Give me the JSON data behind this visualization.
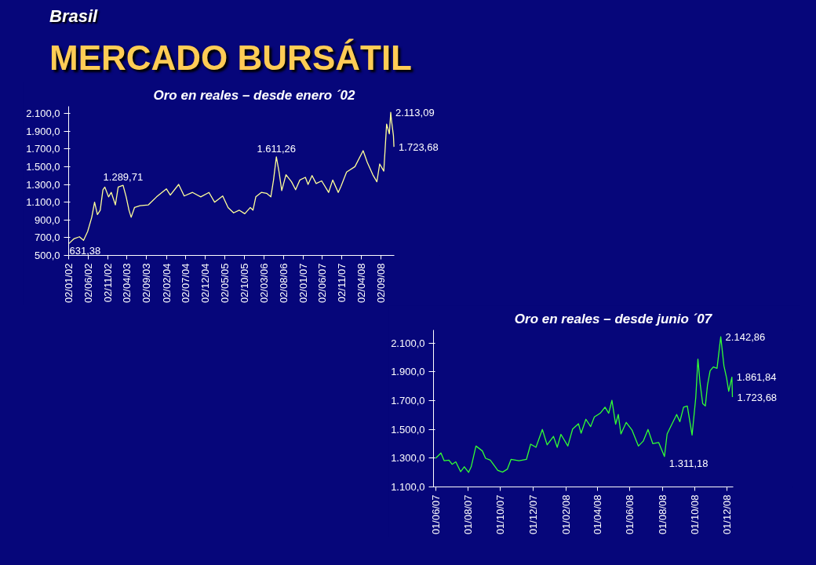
{
  "chart_data": [
    {
      "type": "line",
      "title": "Oro en reales – desde enero ´02",
      "annotations": [
        "Brasil",
        "MERCADO BURSÁTIL",
        {
          "text": "631,38",
          "x": "2002-01-02",
          "y": 631.38
        },
        {
          "text": "1.289,71",
          "x": "2003-03-02",
          "y": 1289.71
        },
        {
          "text": "1.611,26",
          "x": "2006-06-08",
          "y": 1611.26
        },
        {
          "text": "2.113,09",
          "x": "2008-11-15",
          "y": 2113.09
        },
        {
          "text": "1.723,68",
          "x": "2008-12-10",
          "y": 1723.68
        }
      ],
      "xlim": [
        "2002-01-02",
        "2008-12-12"
      ],
      "ylim": [
        500,
        2180
      ],
      "xticks": [
        {
          "value": "2002-01-02",
          "label": "02/01/02"
        },
        {
          "value": "2002-06-02",
          "label": "02/06/02"
        },
        {
          "value": "2002-11-02",
          "label": "02/11/02"
        },
        {
          "value": "2003-04-02",
          "label": "02/04/03"
        },
        {
          "value": "2003-09-02",
          "label": "02/09/03"
        },
        {
          "value": "2004-02-02",
          "label": "02/02/04"
        },
        {
          "value": "2004-07-02",
          "label": "02/07/04"
        },
        {
          "value": "2004-12-02",
          "label": "02/12/04"
        },
        {
          "value": "2005-05-02",
          "label": "02/05/05"
        },
        {
          "value": "2005-10-02",
          "label": "02/10/05"
        },
        {
          "value": "2006-03-02",
          "label": "02/03/06"
        },
        {
          "value": "2006-08-02",
          "label": "02/08/06"
        },
        {
          "value": "2007-01-02",
          "label": "02/01/07"
        },
        {
          "value": "2007-06-02",
          "label": "02/06/07"
        },
        {
          "value": "2007-11-02",
          "label": "02/11/07"
        },
        {
          "value": "2008-04-02",
          "label": "02/04/08"
        },
        {
          "value": "2008-09-02",
          "label": "02/09/08"
        }
      ],
      "yticks": [
        {
          "value": 500,
          "label": "500,0"
        },
        {
          "value": 700,
          "label": "700,0"
        },
        {
          "value": 900,
          "label": "900,0"
        },
        {
          "value": 1100,
          "label": "1.100,0"
        },
        {
          "value": 1300,
          "label": "1.300,0"
        },
        {
          "value": 1500,
          "label": "1.500,0"
        },
        {
          "value": 1700,
          "label": "1.700,0"
        },
        {
          "value": 1900,
          "label": "1.900,0"
        },
        {
          "value": 2100,
          "label": "2.100,0"
        }
      ],
      "series": [
        {
          "color": "#ffff99",
          "x": [
            "2002-01-02",
            "2002-02-14",
            "2002-03-27",
            "2002-04-28",
            "2002-05-30",
            "2002-07-01",
            "2002-07-23",
            "2002-08-14",
            "2002-09-05",
            "2002-09-26",
            "2002-10-11",
            "2002-11-09",
            "2002-11-30",
            "2003-01-01",
            "2003-01-23",
            "2003-03-02",
            "2003-03-26",
            "2003-04-17",
            "2003-05-04",
            "2003-05-30",
            "2003-07-12",
            "2003-09-15",
            "2003-11-18",
            "2004-02-02",
            "2004-03-04",
            "2004-05-08",
            "2004-06-20",
            "2004-08-24",
            "2004-10-27",
            "2004-12-30",
            "2005-02-12",
            "2005-04-16",
            "2005-05-28",
            "2005-07-10",
            "2005-08-22",
            "2005-10-05",
            "2005-11-17",
            "2005-12-08",
            "2005-12-30",
            "2006-02-11",
            "2006-03-24",
            "2006-04-26",
            "2006-05-17",
            "2006-06-08",
            "2006-06-29",
            "2006-07-20",
            "2006-08-22",
            "2006-10-04",
            "2006-11-05",
            "2006-12-08",
            "2007-01-20",
            "2007-02-10",
            "2007-03-13",
            "2007-04-14",
            "2007-05-27",
            "2007-07-20",
            "2007-08-21",
            "2007-10-03",
            "2007-10-25",
            "2007-12-07",
            "2008-02-10",
            "2008-04-14",
            "2008-05-16",
            "2008-06-28",
            "2008-07-30",
            "2008-08-21",
            "2008-09-22",
            "2008-10-14",
            "2008-11-04",
            "2008-11-15",
            "2008-11-21",
            "2008-12-06",
            "2008-12-10"
          ],
          "values": [
            631.38,
            690,
            710,
            670,
            770,
            930,
            1100,
            960,
            1010,
            1240,
            1270,
            1160,
            1210,
            1070,
            1270,
            1289.71,
            1160,
            1010,
            930,
            1040,
            1060,
            1070,
            1160,
            1250,
            1180,
            1300,
            1170,
            1210,
            1160,
            1210,
            1100,
            1170,
            1040,
            980,
            1010,
            970,
            1040,
            1010,
            1160,
            1210,
            1200,
            1160,
            1350,
            1611.26,
            1440,
            1230,
            1410,
            1330,
            1240,
            1350,
            1380,
            1300,
            1400,
            1310,
            1340,
            1210,
            1350,
            1210,
            1280,
            1440,
            1500,
            1680,
            1550,
            1410,
            1330,
            1530,
            1450,
            1980,
            1870,
            2113.09,
            2020,
            1850,
            1723.68
          ]
        }
      ]
    },
    {
      "type": "line",
      "title": "Oro en reales – desde junio ´07",
      "annotations": [
        {
          "text": "2.142,86",
          "x": "2008-11-19",
          "y": 2142.86
        },
        {
          "text": "1.861,84",
          "x": "2008-12-10",
          "y": 1861.84
        },
        {
          "text": "1.723,68",
          "x": "2008-12-11",
          "y": 1723.68
        },
        {
          "text": "1.311,18",
          "x": "2008-08-05",
          "y": 1311.18
        }
      ],
      "xlim": [
        "2007-05-28",
        "2008-12-12"
      ],
      "ylim": [
        1100,
        2190
      ],
      "xticks": [
        {
          "value": "2007-06-01",
          "label": "01/06/07"
        },
        {
          "value": "2007-08-01",
          "label": "01/08/07"
        },
        {
          "value": "2007-10-01",
          "label": "01/10/07"
        },
        {
          "value": "2007-12-01",
          "label": "01/12/07"
        },
        {
          "value": "2008-02-01",
          "label": "01/02/08"
        },
        {
          "value": "2008-04-01",
          "label": "01/04/08"
        },
        {
          "value": "2008-06-01",
          "label": "01/06/08"
        },
        {
          "value": "2008-08-01",
          "label": "01/08/08"
        },
        {
          "value": "2008-10-01",
          "label": "01/10/08"
        },
        {
          "value": "2008-12-01",
          "label": "01/12/08"
        }
      ],
      "yticks": [
        {
          "value": 1100,
          "label": "1.100,0"
        },
        {
          "value": 1300,
          "label": "1.300,0"
        },
        {
          "value": 1500,
          "label": "1.500,0"
        },
        {
          "value": 1700,
          "label": "1.700,0"
        },
        {
          "value": 1900,
          "label": "1.900,0"
        },
        {
          "value": 2100,
          "label": "2.100,0"
        }
      ],
      "series": [
        {
          "color": "#33ff33",
          "x": [
            "2007-06-01",
            "2007-06-11",
            "2007-06-17",
            "2007-06-26",
            "2007-07-02",
            "2007-07-09",
            "2007-07-18",
            "2007-07-25",
            "2007-08-02",
            "2007-08-07",
            "2007-08-16",
            "2007-08-28",
            "2007-09-03",
            "2007-09-12",
            "2007-09-26",
            "2007-10-05",
            "2007-10-14",
            "2007-10-21",
            "2007-11-05",
            "2007-11-19",
            "2007-11-27",
            "2007-12-07",
            "2007-12-19",
            "2007-12-28",
            "2008-01-09",
            "2008-01-16",
            "2008-01-23",
            "2008-02-05",
            "2008-02-14",
            "2008-02-25",
            "2008-03-01",
            "2008-03-10",
            "2008-03-19",
            "2008-03-26",
            "2008-04-06",
            "2008-04-15",
            "2008-04-22",
            "2008-04-28",
            "2008-05-05",
            "2008-05-10",
            "2008-05-15",
            "2008-05-25",
            "2008-06-05",
            "2008-06-17",
            "2008-06-26",
            "2008-07-05",
            "2008-07-14",
            "2008-07-25",
            "2008-08-05",
            "2008-08-10",
            "2008-08-19",
            "2008-08-28",
            "2008-09-03",
            "2008-09-10",
            "2008-09-17",
            "2008-09-26",
            "2008-10-03",
            "2008-10-07",
            "2008-10-11",
            "2008-10-16",
            "2008-10-21",
            "2008-10-25",
            "2008-10-30",
            "2008-11-05",
            "2008-11-12",
            "2008-11-19",
            "2008-11-25",
            "2008-11-30",
            "2008-12-04",
            "2008-12-10",
            "2008-12-11"
          ],
          "values": [
            1299,
            1336,
            1282,
            1286,
            1257,
            1274,
            1206,
            1240,
            1201,
            1240,
            1384,
            1350,
            1299,
            1286,
            1215,
            1203,
            1223,
            1291,
            1282,
            1291,
            1397,
            1375,
            1499,
            1392,
            1451,
            1375,
            1465,
            1384,
            1502,
            1539,
            1473,
            1570,
            1519,
            1586,
            1612,
            1654,
            1612,
            1701,
            1536,
            1603,
            1468,
            1548,
            1494,
            1384,
            1418,
            1499,
            1401,
            1409,
            1311.18,
            1468,
            1536,
            1603,
            1553,
            1654,
            1662,
            1460,
            1722,
            1988,
            1823,
            1679,
            1662,
            1806,
            1907,
            1933,
            1924,
            2142.86,
            1941,
            1857,
            1764,
            1861.84,
            1723.68
          ]
        }
      ]
    }
  ]
}
